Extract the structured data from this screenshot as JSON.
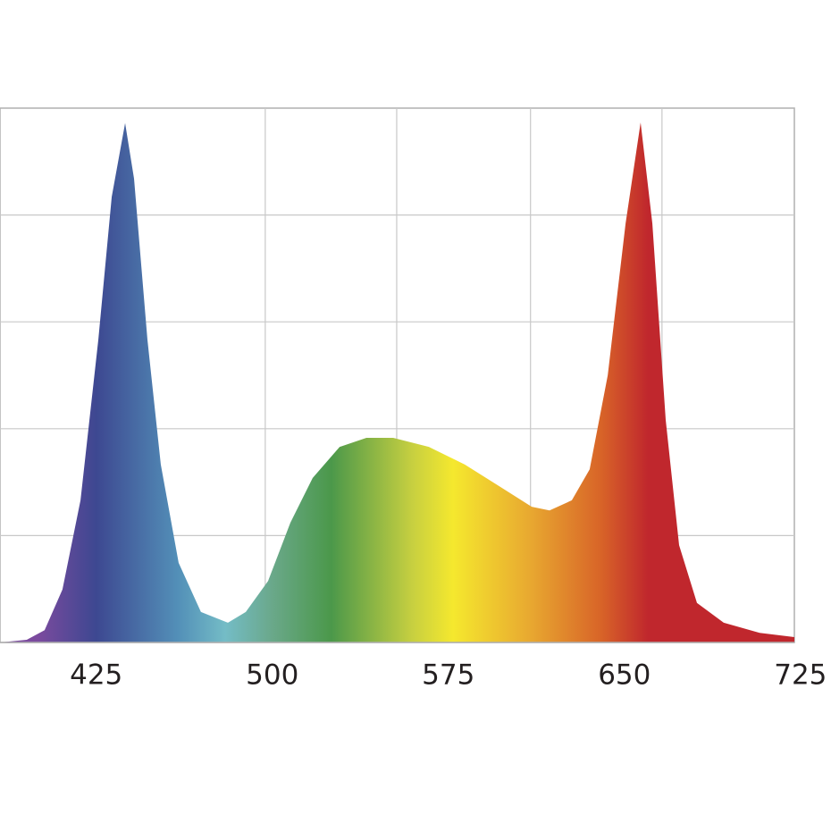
{
  "chart_data": {
    "type": "area",
    "x": [
      384,
      395.4,
      403,
      410.6,
      418.3,
      425.9,
      431.6,
      437.3,
      441.1,
      446.8,
      452.5,
      460.1,
      469.6,
      481.1,
      488.7,
      498.2,
      507.7,
      517.2,
      528.7,
      540.1,
      551.5,
      566.7,
      582,
      597.2,
      610.5,
      618.1,
      627.6,
      635.2,
      642.9,
      650.5,
      656.9,
      661.9,
      667.6,
      673.3,
      680.9,
      692.3,
      707.6,
      722.4
    ],
    "values": [
      0,
      0.5,
      2.3,
      9.9,
      26.6,
      56.7,
      83.4,
      97.2,
      86.8,
      56.7,
      33.3,
      14.9,
      5.7,
      3.7,
      5.7,
      11.5,
      22.4,
      30.8,
      36.6,
      38.3,
      38.3,
      36.6,
      33.3,
      29.1,
      25.4,
      24.7,
      26.6,
      32.4,
      50,
      78.4,
      97.3,
      78.4,
      41.6,
      18.2,
      7.4,
      3.7,
      1.8,
      1.0
    ],
    "xlim": [
      384,
      722.4
    ],
    "ylim": [
      0,
      100
    ],
    "xticks": [
      425,
      500,
      575,
      650,
      725
    ],
    "xgrid": [
      497,
      553,
      610,
      666
    ],
    "ygrid": [
      20,
      40,
      60,
      80
    ],
    "grid": true,
    "gradient": [
      {
        "at": 400,
        "color": "#7b4a9e"
      },
      {
        "at": 425,
        "color": "#3d4891"
      },
      {
        "at": 460,
        "color": "#5390b8"
      },
      {
        "at": 480,
        "color": "#74bcc6"
      },
      {
        "at": 500,
        "color": "#6aa88a"
      },
      {
        "at": 525,
        "color": "#4b984a"
      },
      {
        "at": 560,
        "color": "#c8d040"
      },
      {
        "at": 577,
        "color": "#f5e82e"
      },
      {
        "at": 610,
        "color": "#e8a830"
      },
      {
        "at": 640,
        "color": "#d86428"
      },
      {
        "at": 660,
        "color": "#c0272d"
      },
      {
        "at": 722,
        "color": "#c0272d"
      }
    ]
  }
}
